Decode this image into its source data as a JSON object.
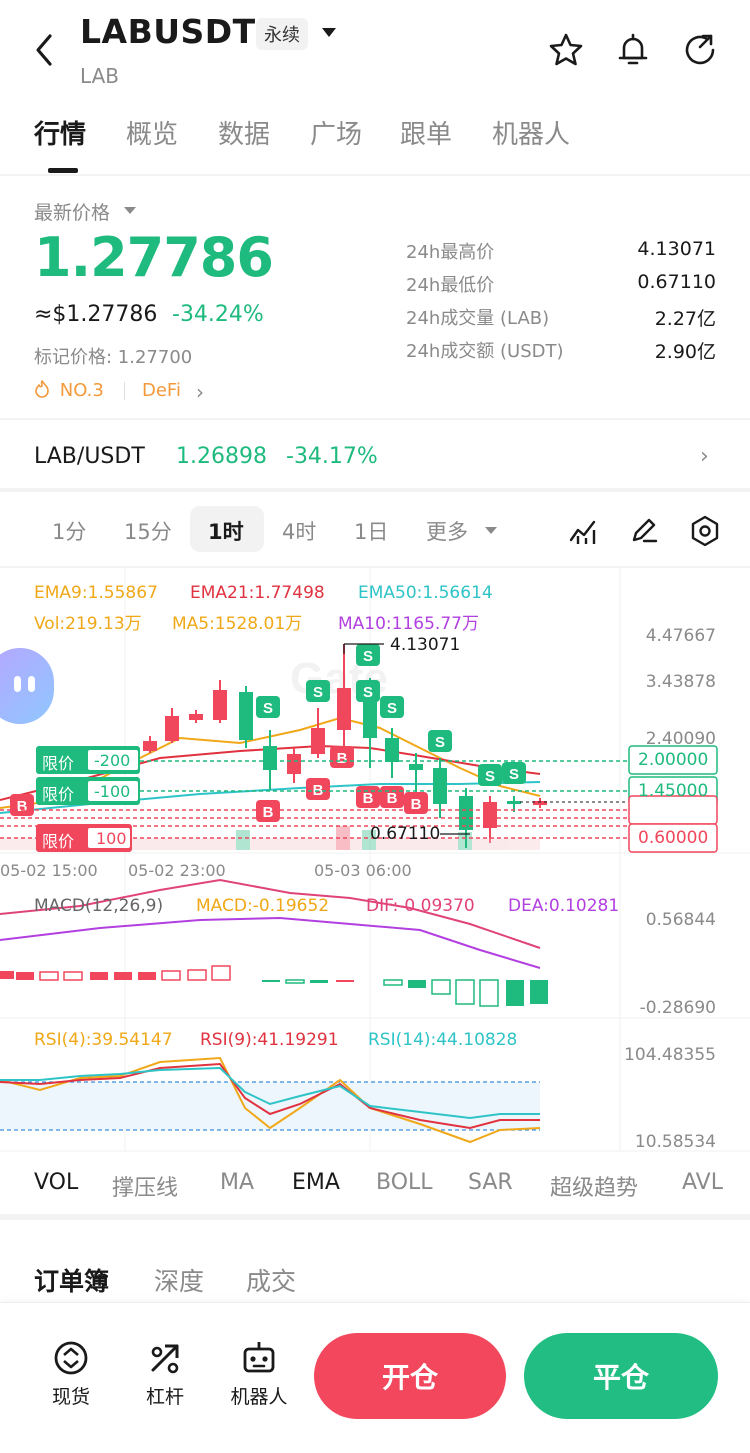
{
  "header": {
    "title": "LABUSDT",
    "contract_type": "永续",
    "subtitle": "LAB"
  },
  "tabs": [
    "行情",
    "概览",
    "数据",
    "广场",
    "跟单",
    "机器人"
  ],
  "price": {
    "latest_label": "最新价格",
    "last": "1.27786",
    "usd": "≈$1.27786",
    "change_pct": "-34.24%",
    "mark_price": "标记价格: 1.27700",
    "rank": "NO.3",
    "category": "DeFi"
  },
  "stats": [
    {
      "label": "24h最高价",
      "value": "4.13071"
    },
    {
      "label": "24h最低价",
      "value": "0.67110"
    },
    {
      "label": "24h成交量 (LAB)",
      "value": "2.27亿"
    },
    {
      "label": "24h成交额 (USDT)",
      "value": "2.90亿"
    }
  ],
  "spot_pair": {
    "label": "LAB/USDT",
    "price": "1.26898",
    "change": "-34.17%"
  },
  "intervals": [
    "1分",
    "15分",
    "1时",
    "4时",
    "1日",
    "更多"
  ],
  "chart": {
    "ema": {
      "ema9": "EMA9:1.55867",
      "ema21": "EMA21:1.77498",
      "ema50": "EMA50:1.56614"
    },
    "vol": {
      "vol": "Vol:219.13万",
      "ma5": "MA5:1528.01万",
      "ma10": "MA10:1165.77万"
    },
    "price_axis": [
      "4.47667",
      "3.43878",
      "2.40090"
    ],
    "high_marker": "4.13071",
    "low_marker": "0.67110",
    "orders": [
      {
        "type": "限价",
        "qty": "-200",
        "price": "2.00000"
      },
      {
        "type": "限价",
        "qty": "-100",
        "price": "1.45000"
      },
      {
        "type": "限价",
        "qty": "100",
        "price": "0.60000"
      }
    ],
    "time_axis": [
      "05-02 15:00",
      "05-02 23:00",
      "05-03 06:00"
    ],
    "macd": {
      "label": "MACD(12,26,9)",
      "macd": "MACD:-0.19652",
      "dif": "DIF:-0.09370",
      "dea": "DEA:0.10281",
      "axis_top": "0.56844",
      "axis_bottom": "-0.28690"
    },
    "rsi": {
      "rsi4": "RSI(4):39.54147",
      "rsi9": "RSI(9):41.19291",
      "rsi14": "RSI(14):44.10828",
      "axis_top": "104.48355",
      "axis_bottom": "10.58534"
    }
  },
  "indicator_tabs": [
    "VOL",
    "撑压线",
    "MA",
    "EMA",
    "BOLL",
    "SAR",
    "超级趋势",
    "AVL"
  ],
  "orderbook_tabs": [
    "订单簿",
    "深度",
    "成交"
  ],
  "bottom_bar": {
    "spot": "现货",
    "leverage": "杠杆",
    "bot": "机器人",
    "open": "开仓",
    "close": "平仓"
  },
  "colors": {
    "up": "#1fba7e",
    "down": "#f0475c",
    "ema9": "#f0a818",
    "ema21": "#e0323f",
    "ema50": "#2ec4c7",
    "ma10": "#b23fe0"
  }
}
